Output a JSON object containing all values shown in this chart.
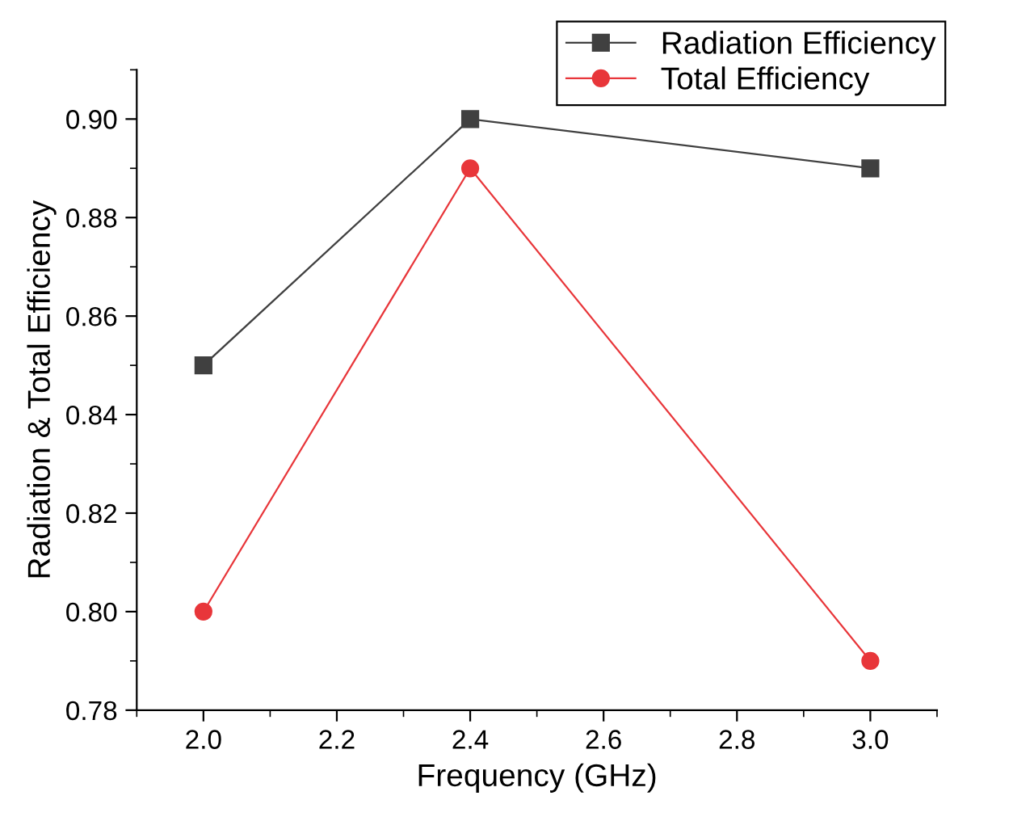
{
  "chart_data": {
    "type": "line",
    "xlabel": "Frequency (GHz)",
    "ylabel": "Radiation & Total Efficiency",
    "x": [
      2.0,
      2.4,
      3.0
    ],
    "series": [
      {
        "name": "Radiation Efficiency",
        "color": "#404040",
        "marker": "square",
        "values": [
          0.85,
          0.9,
          0.89
        ]
      },
      {
        "name": "Total Efficiency",
        "color": "#e8363a",
        "marker": "circle",
        "values": [
          0.8,
          0.89,
          0.79
        ]
      }
    ],
    "xlim": [
      1.9,
      3.1
    ],
    "xticks": [
      {
        "value": 2.0,
        "label": "2.0"
      },
      {
        "value": 2.2,
        "label": "2.2"
      },
      {
        "value": 2.4,
        "label": "2.4"
      },
      {
        "value": 2.6,
        "label": "2.6"
      },
      {
        "value": 2.8,
        "label": "2.8"
      },
      {
        "value": 3.0,
        "label": "3.0"
      }
    ],
    "ylim": [
      0.78,
      0.91
    ],
    "yticks": [
      {
        "value": 0.78,
        "label": "0.78"
      },
      {
        "value": 0.8,
        "label": "0.80"
      },
      {
        "value": 0.82,
        "label": "0.82"
      },
      {
        "value": 0.84,
        "label": "0.84"
      },
      {
        "value": 0.86,
        "label": "0.86"
      },
      {
        "value": 0.88,
        "label": "0.88"
      },
      {
        "value": 0.9,
        "label": "0.90"
      }
    ],
    "grid": false,
    "legend": "top right",
    "line_style": "solid"
  }
}
